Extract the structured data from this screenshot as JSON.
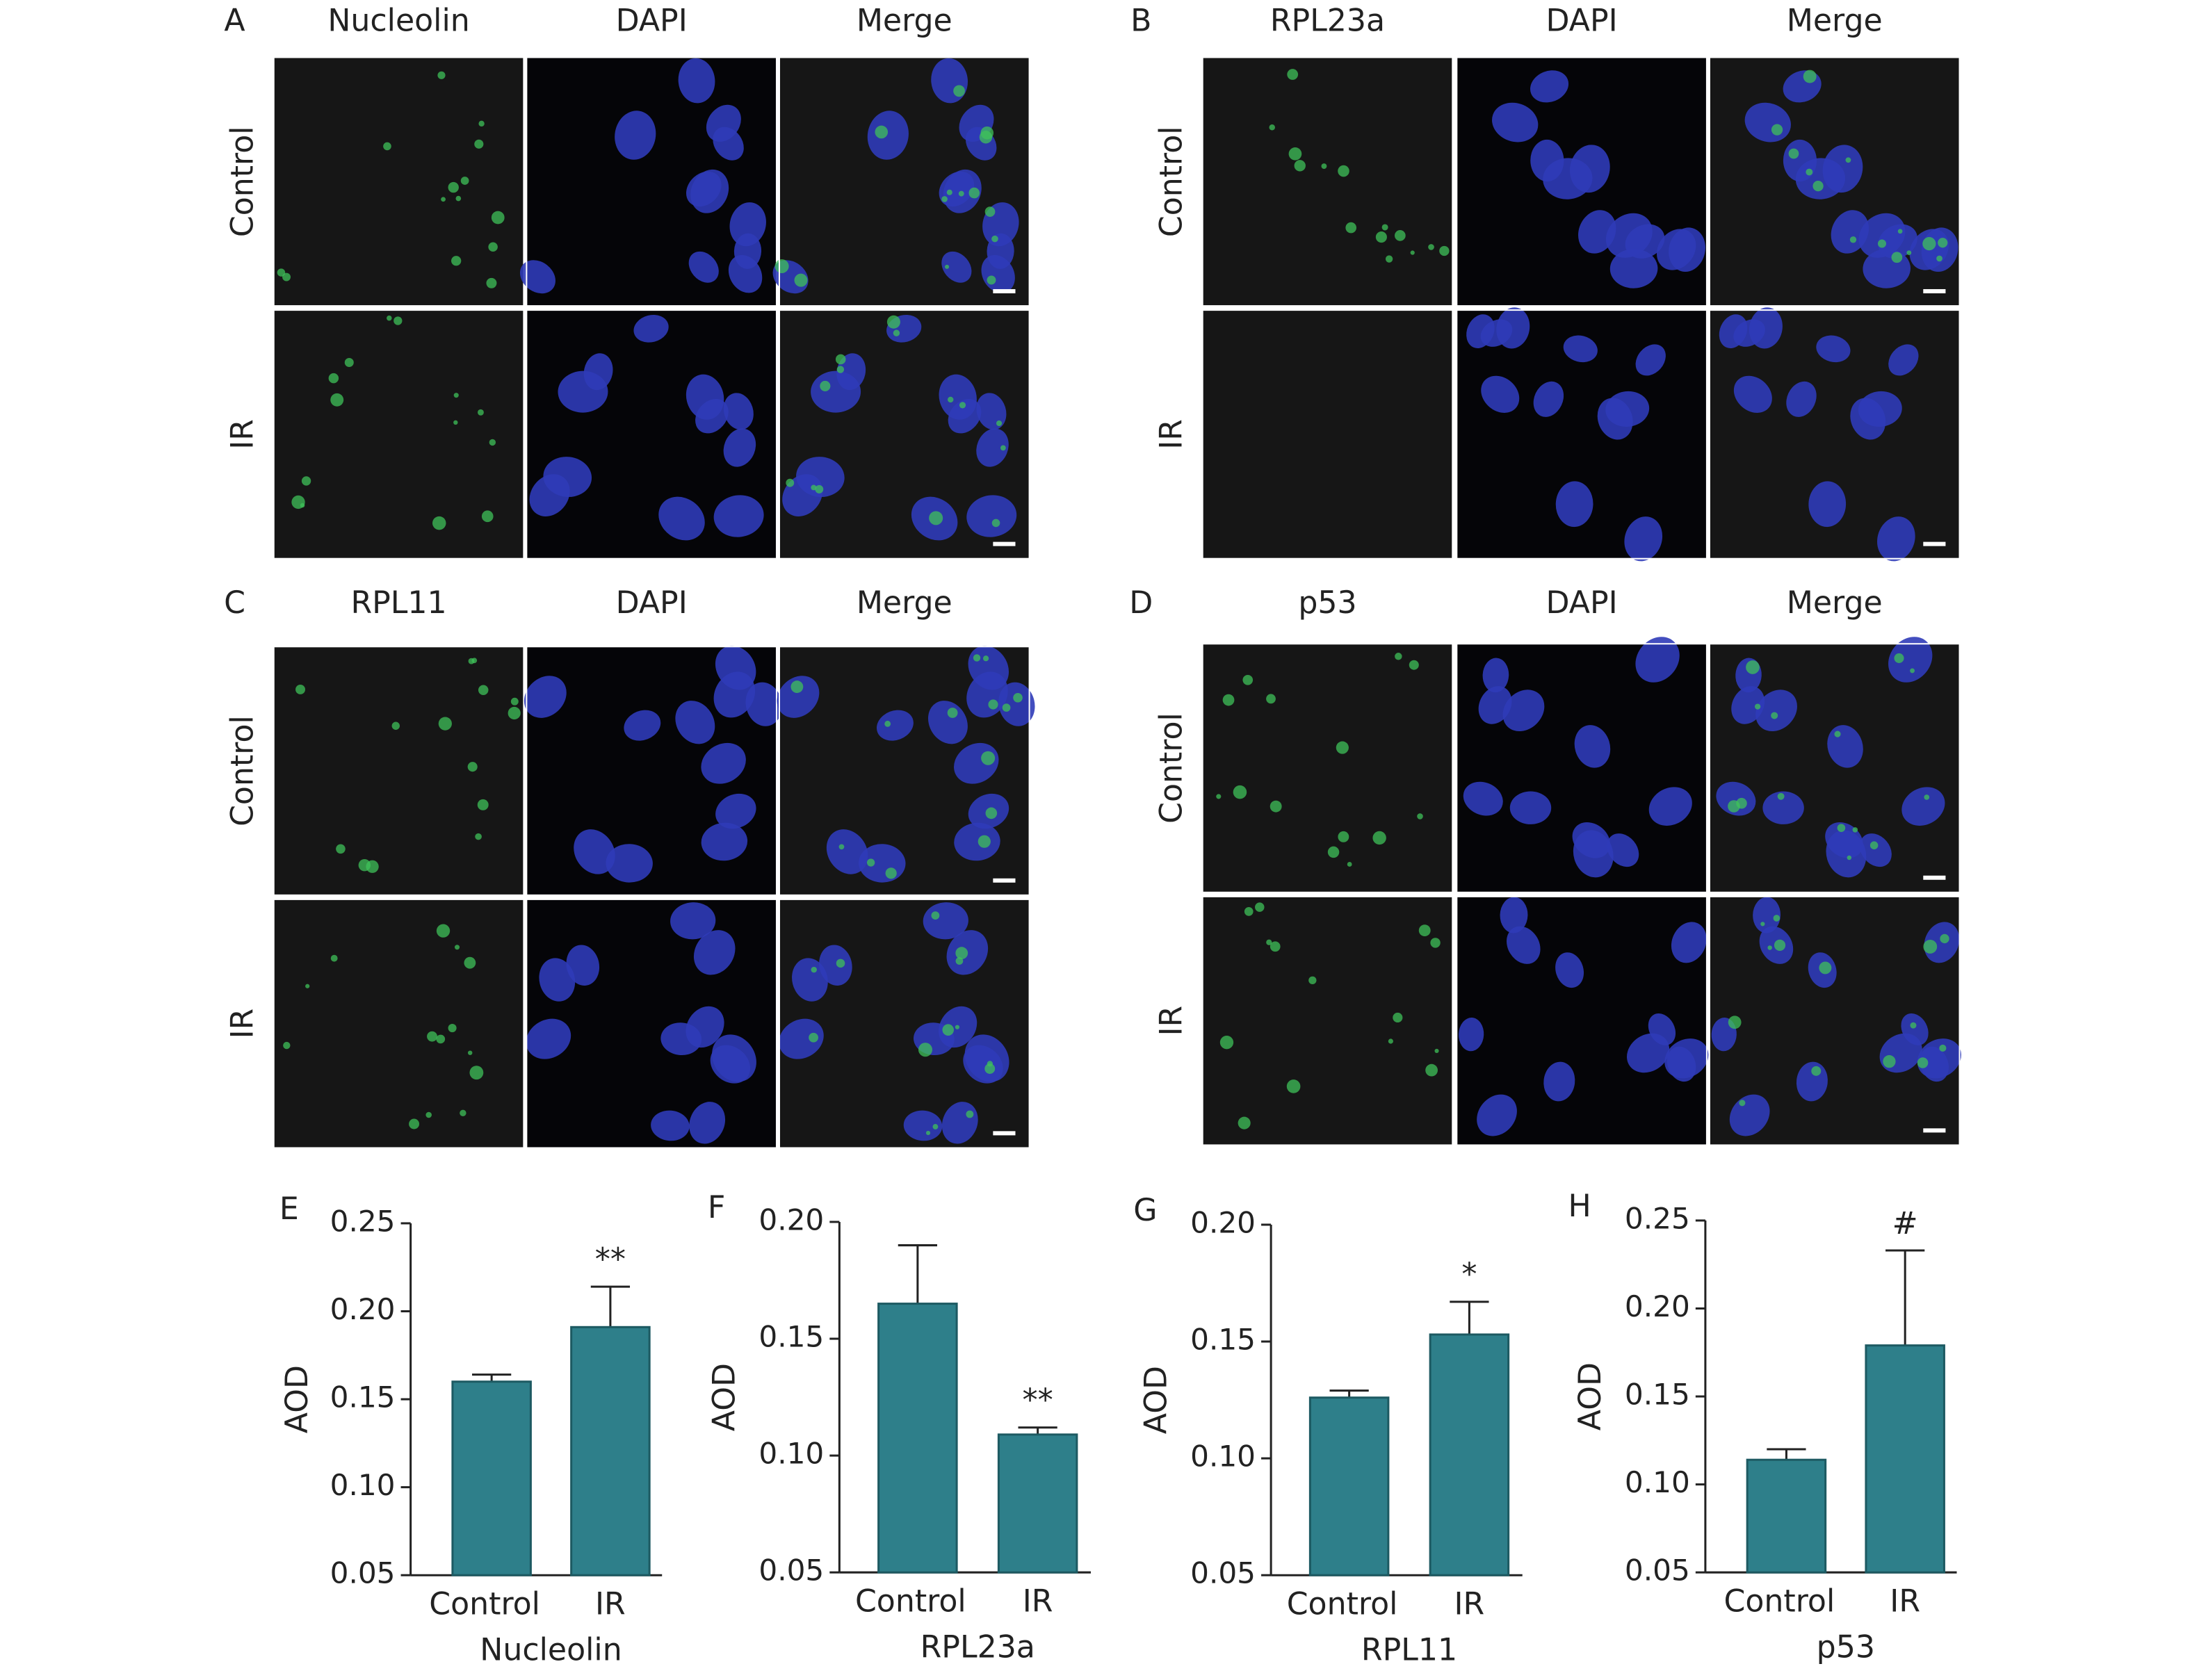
{
  "panels": [
    {
      "letter": "A",
      "columns": [
        "Nucleolin",
        "DAPI",
        "Merge"
      ],
      "rows": [
        "Control",
        "IR"
      ]
    },
    {
      "letter": "B",
      "columns": [
        "RPL23a",
        "DAPI",
        "Merge"
      ],
      "rows": [
        "Control",
        "IR"
      ]
    },
    {
      "letter": "C",
      "columns": [
        "RPL11",
        "DAPI",
        "Merge"
      ],
      "rows": [
        "Control",
        "IR"
      ]
    },
    {
      "letter": "D",
      "columns": [
        "p53",
        "DAPI",
        "Merge"
      ],
      "rows": [
        "Control",
        "IR"
      ]
    }
  ],
  "chart_data": [
    {
      "type": "bar",
      "title": "E",
      "ylabel": "AOD",
      "xlabel": "Nucleolin",
      "categories": [
        "Control",
        "IR"
      ],
      "values": [
        0.16,
        0.191
      ],
      "errors": [
        0.004,
        0.023
      ],
      "value_annotations": [
        null,
        "**"
      ],
      "color": "#2e7f8a",
      "ylim": [
        0.05,
        0.25
      ],
      "yticks": [
        0.05,
        {
          "value": 0.1,
          "label": "0.10"
        },
        0.15,
        {
          "value": 0.2,
          "label": "0.20"
        },
        0.25
      ]
    },
    {
      "type": "bar",
      "title": "F",
      "ylabel": "AOD",
      "xlabel": "RPL23a",
      "categories": [
        "Control",
        "IR"
      ],
      "values": [
        0.165,
        0.109
      ],
      "errors": [
        0.025,
        0.003
      ],
      "value_annotations": [
        null,
        "**"
      ],
      "color": "#2e7f8a",
      "ylim": [
        0.05,
        0.2
      ],
      "yticks": [
        0.05,
        {
          "value": 0.1,
          "label": "0.10"
        },
        0.15,
        {
          "value": 0.2,
          "label": "0.20"
        }
      ]
    },
    {
      "type": "bar",
      "title": "G",
      "ylabel": "AOD",
      "xlabel": "RPL11",
      "categories": [
        "Control",
        "IR"
      ],
      "values": [
        0.126,
        0.153
      ],
      "errors": [
        0.003,
        0.014
      ],
      "value_annotations": [
        null,
        "*"
      ],
      "color": "#2e7f8a",
      "ylim": [
        0.05,
        0.2
      ],
      "yticks": [
        0.05,
        {
          "value": 0.1,
          "label": "0.10"
        },
        0.15,
        {
          "value": 0.2,
          "label": "0.20"
        }
      ]
    },
    {
      "type": "bar",
      "title": "H",
      "ylabel": "AOD",
      "xlabel": "p53",
      "categories": [
        "Control",
        "IR"
      ],
      "values": [
        0.114,
        0.179
      ],
      "errors": [
        0.006,
        0.054
      ],
      "value_annotations": [
        null,
        "#"
      ],
      "color": "#2e7f8a",
      "ylim": [
        0.05,
        0.25
      ],
      "yticks": [
        0.05,
        {
          "value": 0.1,
          "label": "0.10"
        },
        0.15,
        {
          "value": 0.2,
          "label": "0.20"
        },
        0.25
      ]
    }
  ]
}
